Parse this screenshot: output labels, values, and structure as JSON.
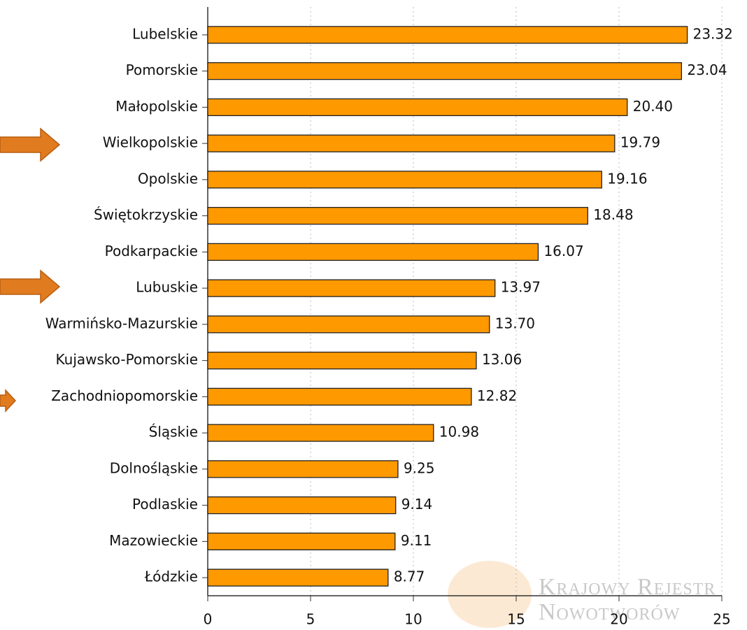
{
  "chart_data": {
    "type": "barh",
    "categories": [
      "Lubelskie",
      "Pomorskie",
      "Małopolskie",
      "Wielkopolskie",
      "Opolskie",
      "Świętokrzyskie",
      "Podkarpackie",
      "Lubuskie",
      "Warmińsko-Mazurskie",
      "Kujawsko-Pomorskie",
      "Zachodniopomorskie",
      "Śląskie",
      "Dolnośląskie",
      "Podlaskie",
      "Mazowieckie",
      "Łódzkie"
    ],
    "values": [
      23.32,
      23.04,
      20.4,
      19.79,
      19.16,
      18.48,
      16.07,
      13.97,
      13.7,
      13.06,
      12.82,
      10.98,
      9.25,
      9.14,
      9.11,
      8.77
    ],
    "value_labels": [
      "23.32",
      "23.04",
      "20.40",
      "19.79",
      "19.16",
      "18.48",
      "16.07",
      "13.97",
      "13.70",
      "13.06",
      "12.82",
      "10.98",
      "9.25",
      "9.14",
      "9.11",
      "8.77"
    ],
    "color": "#ff9900",
    "xlim": [
      0,
      25
    ],
    "xticks": [
      0,
      5,
      10,
      15,
      20,
      25
    ],
    "grid": true,
    "watermark": [
      "Krajowy Rejestr",
      "Nowotworów"
    ]
  }
}
